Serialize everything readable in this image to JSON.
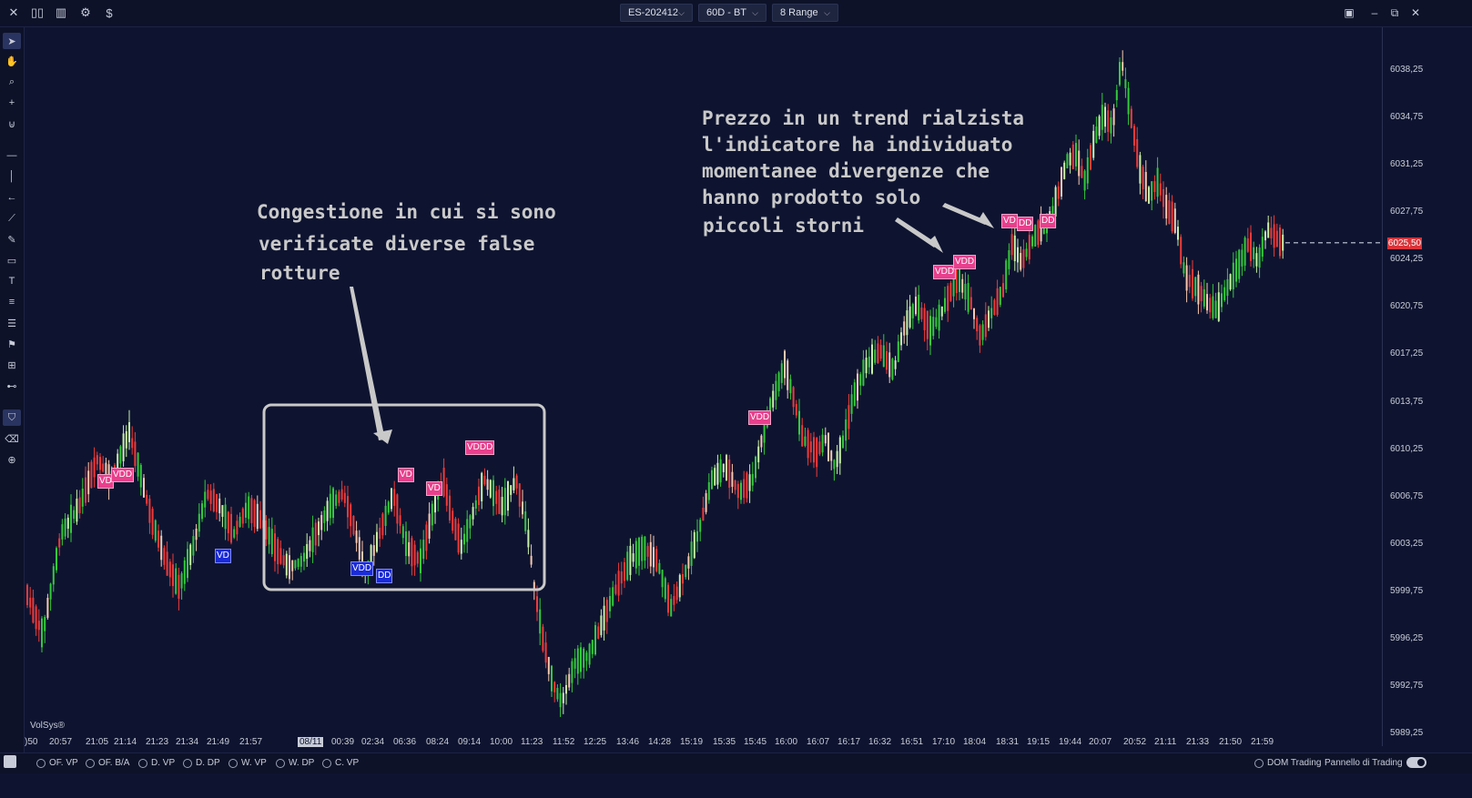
{
  "toolbar": {
    "instrument": "ES-202412",
    "timeframe": "60D - BT",
    "range": "8 Range"
  },
  "chart_data": {
    "type": "candlestick",
    "ylim": [
      5989.25,
      6041.5
    ],
    "yticks": [
      "6038,25",
      "6034,75",
      "6031,25",
      "6027,75",
      "6024,25",
      "6020,75",
      "6017,25",
      "6013,75",
      "6010,25",
      "6006,75",
      "6003,25",
      "5999,75",
      "5996,25",
      "5992,75",
      "5989,25"
    ],
    "ytick_values": [
      6038.25,
      6034.75,
      6031.25,
      6027.75,
      6024.25,
      6020.75,
      6017.25,
      6013.75,
      6010.25,
      6006.75,
      6003.25,
      5999.75,
      5996.25,
      5992.75,
      5989.25
    ],
    "last_price": "6025,50",
    "last_price_value": 6025.5,
    "xticks": [
      ")50",
      "20:57",
      "21:05",
      "21:14",
      "21:23",
      "21:34",
      "21:49",
      "21:57",
      "08/11",
      "00:39",
      "02:34",
      "06:36",
      "08:24",
      "09:14",
      "10:00",
      "11:23",
      "11:52",
      "12:25",
      "13:46",
      "14:28",
      "15:19",
      "15:35",
      "15:45",
      "16:00",
      "16:07",
      "16:17",
      "16:32",
      "16:51",
      "17:10",
      "18:04",
      "18:31",
      "19:15",
      "19:44",
      "20:07",
      "20:52",
      "21:11",
      "21:33",
      "21:50",
      "21:59"
    ],
    "highlighted_xtick": "08/11",
    "path": [
      [
        0,
        6000
      ],
      [
        20,
        5996.5
      ],
      [
        40,
        6004
      ],
      [
        60,
        6006
      ],
      [
        80,
        6009.5
      ],
      [
        95,
        6008
      ],
      [
        115,
        6011.5
      ],
      [
        125,
        6009
      ],
      [
        140,
        6005
      ],
      [
        155,
        6002
      ],
      [
        170,
        6000
      ],
      [
        185,
        6003
      ],
      [
        200,
        6007
      ],
      [
        215,
        6006
      ],
      [
        230,
        6004
      ],
      [
        245,
        6006
      ],
      [
        260,
        6005
      ],
      [
        275,
        6003
      ],
      [
        290,
        6001.5
      ],
      [
        305,
        6002
      ],
      [
        320,
        6004
      ],
      [
        335,
        6006
      ],
      [
        350,
        6007
      ],
      [
        360,
        6005
      ],
      [
        375,
        6001
      ],
      [
        390,
        6004
      ],
      [
        405,
        6007
      ],
      [
        420,
        6003
      ],
      [
        435,
        6002
      ],
      [
        450,
        6006
      ],
      [
        460,
        6008
      ],
      [
        470,
        6005
      ],
      [
        480,
        6003
      ],
      [
        495,
        6006
      ],
      [
        505,
        6008
      ],
      [
        515,
        6007
      ],
      [
        525,
        6006
      ],
      [
        540,
        6008
      ],
      [
        550,
        6005
      ],
      [
        555,
        6003
      ],
      [
        560,
        6000
      ],
      [
        570,
        5996
      ],
      [
        580,
        5993
      ],
      [
        590,
        5991.5
      ],
      [
        605,
        5994.5
      ],
      [
        620,
        5995
      ],
      [
        635,
        5997.5
      ],
      [
        650,
        6000
      ],
      [
        665,
        6002
      ],
      [
        680,
        6003
      ],
      [
        695,
        6002
      ],
      [
        710,
        5998.5
      ],
      [
        725,
        6001
      ],
      [
        740,
        6004
      ],
      [
        755,
        6008
      ],
      [
        770,
        6009
      ],
      [
        785,
        6007
      ],
      [
        800,
        6008
      ],
      [
        810,
        6011
      ],
      [
        820,
        6013.5
      ],
      [
        835,
        6016.5
      ],
      [
        845,
        6014
      ],
      [
        855,
        6011
      ],
      [
        870,
        6010
      ],
      [
        880,
        6011
      ],
      [
        890,
        6009
      ],
      [
        900,
        6011
      ],
      [
        910,
        6014
      ],
      [
        925,
        6016.5
      ],
      [
        940,
        6017.5
      ],
      [
        955,
        6016
      ],
      [
        965,
        6019
      ],
      [
        980,
        6021
      ],
      [
        995,
        6019
      ],
      [
        1005,
        6020
      ],
      [
        1015,
        6021.5
      ],
      [
        1025,
        6023
      ],
      [
        1040,
        6021
      ],
      [
        1050,
        6018.5
      ],
      [
        1060,
        6020
      ],
      [
        1075,
        6022
      ],
      [
        1085,
        6025.5
      ],
      [
        1095,
        6024
      ],
      [
        1110,
        6026
      ],
      [
        1125,
        6027
      ],
      [
        1135,
        6029
      ],
      [
        1145,
        6031.5
      ],
      [
        1155,
        6032
      ],
      [
        1165,
        6030
      ],
      [
        1175,
        6033
      ],
      [
        1185,
        6035
      ],
      [
        1195,
        6034
      ],
      [
        1205,
        6039
      ],
      [
        1215,
        6035
      ],
      [
        1225,
        6031
      ],
      [
        1235,
        6029
      ],
      [
        1245,
        6030
      ],
      [
        1255,
        6028
      ],
      [
        1265,
        6027
      ],
      [
        1275,
        6023
      ],
      [
        1290,
        6022
      ],
      [
        1300,
        6021
      ],
      [
        1310,
        6020.5
      ],
      [
        1320,
        6022
      ],
      [
        1335,
        6024
      ],
      [
        1345,
        6025.5
      ],
      [
        1355,
        6024
      ],
      [
        1365,
        6026.5
      ],
      [
        1380,
        6025.5
      ]
    ]
  },
  "annotations": {
    "box_text": [
      "Congestione in cui si sono",
      "verificate diverse false",
      "rotture"
    ],
    "trend_text": [
      "Prezzo in un trend rialzista",
      "l'indicatore ha individuato",
      "momentanee divergenze che",
      "hanno prodotto solo",
      "piccoli storni"
    ]
  },
  "tags": [
    {
      "text": "VD",
      "color": "pink"
    },
    {
      "text": "VDD",
      "color": "pink"
    },
    {
      "text": "VD",
      "color": "blue"
    },
    {
      "text": "VDD",
      "color": "blue"
    },
    {
      "text": "DD",
      "color": "blue"
    },
    {
      "text": "VD",
      "color": "pink"
    },
    {
      "text": "VD",
      "color": "pink"
    },
    {
      "text": "VDDD",
      "color": "pink"
    },
    {
      "text": "VDD",
      "color": "pink"
    },
    {
      "text": "VDD",
      "color": "pink"
    },
    {
      "text": "VDD",
      "color": "pink"
    },
    {
      "text": "VD",
      "color": "pink"
    },
    {
      "text": "DD",
      "color": "pink"
    },
    {
      "text": "DD",
      "color": "pink"
    }
  ],
  "watermark": "VolSys®",
  "bottom_tabs": [
    "OF. VP",
    "OF. B/A",
    "D. VP",
    "D. DP",
    "W. VP",
    "W. DP",
    "C. VP"
  ],
  "bottom_right": {
    "dom": "DOM Trading",
    "panel": "Pannello di Trading"
  },
  "colors": {
    "background": "#0e1430",
    "up": "#34c93c",
    "down": "#f03a3a",
    "up_light": "#c8f0a8",
    "down_light": "#f8c8b0"
  }
}
